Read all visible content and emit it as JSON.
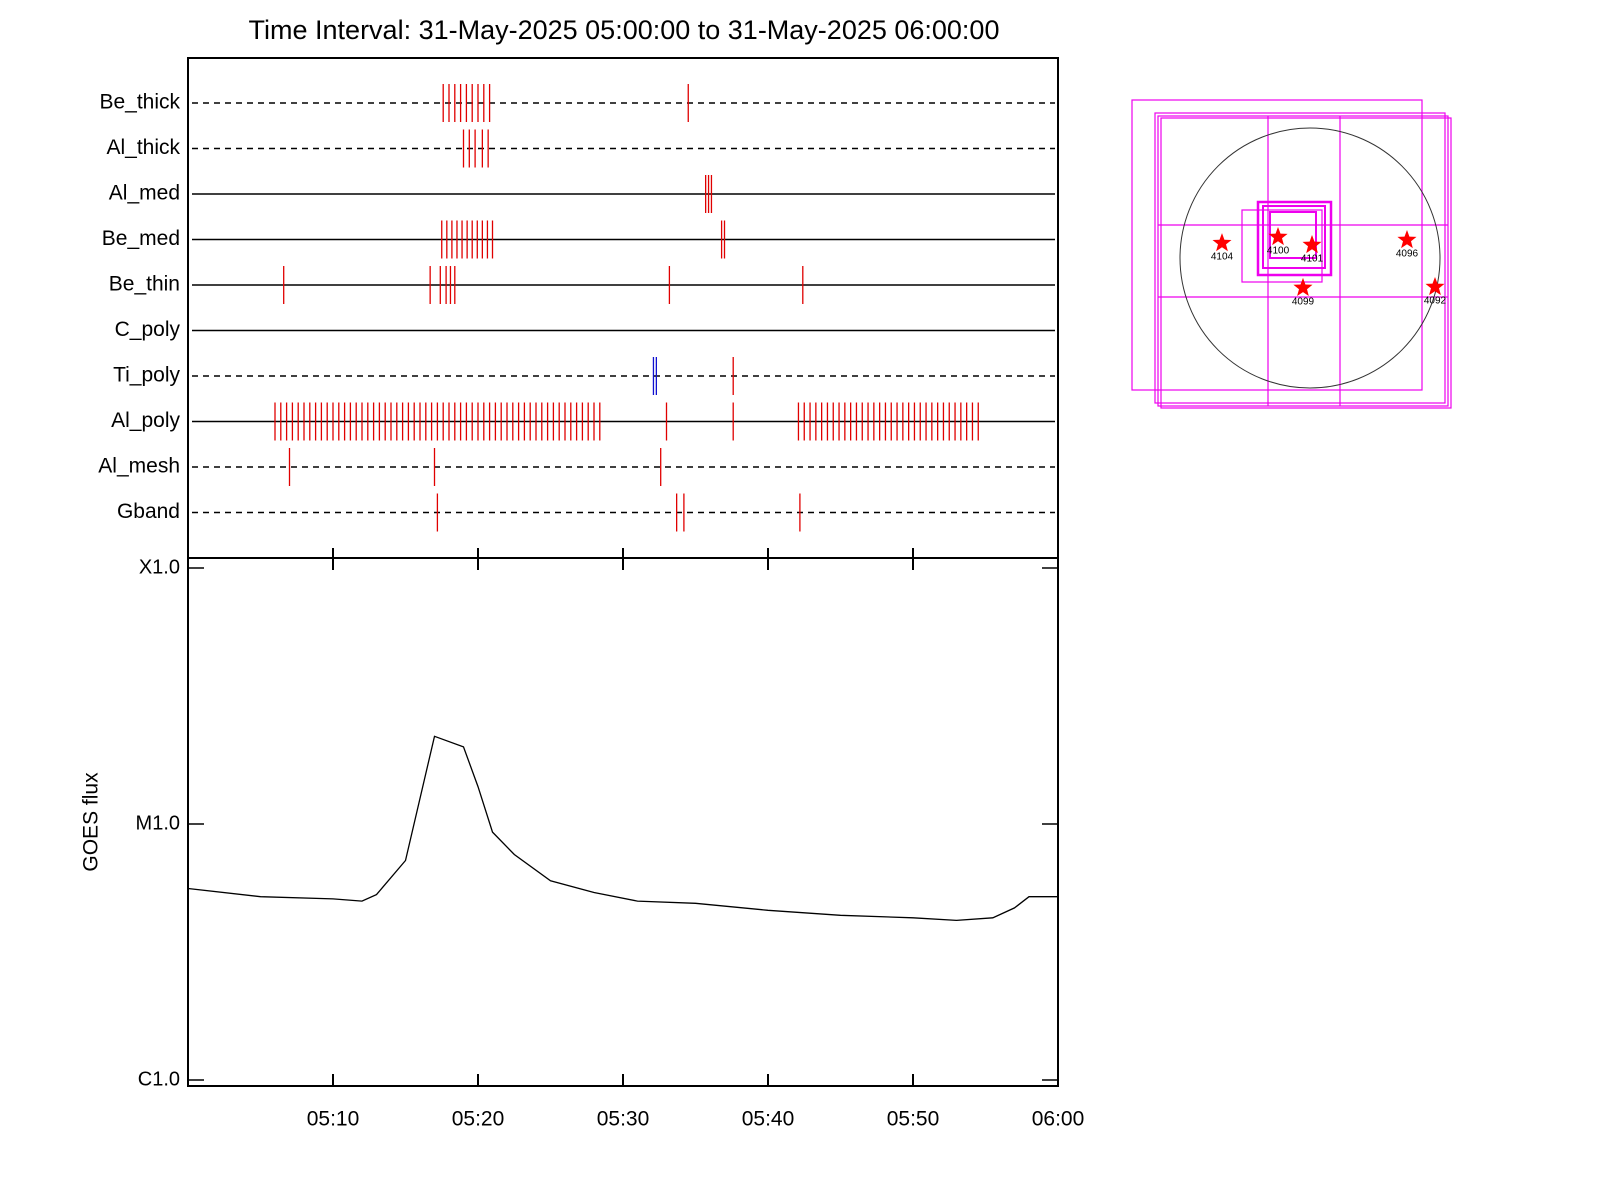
{
  "chart_data": [
    {
      "type": "events",
      "title": "Time Interval: 31-May-2025 05:00:00 to 31-May-2025 06:00:00",
      "xlim": [
        0,
        60
      ],
      "rows": [
        {
          "name": "Be_thick",
          "dashed": true,
          "events": [
            {
              "color": "#e00000",
              "times": [
                17.6,
                18.0,
                18.4,
                18.8,
                19.2,
                19.6,
                20.0,
                20.4,
                20.8,
                34.5
              ]
            }
          ]
        },
        {
          "name": "Al_thick",
          "dashed": true,
          "events": [
            {
              "color": "#e00000",
              "times": [
                19.0,
                19.4,
                19.8,
                20.3,
                20.7
              ]
            }
          ]
        },
        {
          "name": "Al_med",
          "dashed": false,
          "events": [
            {
              "color": "#e00000",
              "times": [
                35.7,
                35.9,
                36.1
              ]
            }
          ]
        },
        {
          "name": "Be_med",
          "dashed": false,
          "events": [
            {
              "color": "#e00000",
              "times": [
                17.5,
                17.85,
                18.2,
                18.55,
                18.9,
                19.25,
                19.6,
                19.95,
                20.3,
                20.65,
                21.0,
                36.8,
                37.0
              ]
            }
          ]
        },
        {
          "name": "Be_thin",
          "dashed": false,
          "events": [
            {
              "color": "#e00000",
              "times": [
                6.6,
                16.7,
                17.4,
                17.8,
                18.1,
                18.4,
                33.2,
                42.4
              ]
            }
          ]
        },
        {
          "name": "C_poly",
          "dashed": false,
          "events": []
        },
        {
          "name": "Ti_poly",
          "dashed": true,
          "events": [
            {
              "color": "#1010d0",
              "times": [
                32.1,
                32.3
              ]
            },
            {
              "color": "#e00000",
              "times": [
                37.6
              ]
            }
          ]
        },
        {
          "name": "Al_poly",
          "dashed": false,
          "events": [
            {
              "color": "#e00000",
              "times": [
                6.0,
                6.4,
                6.8,
                7.2,
                7.6,
                8.0,
                8.4,
                8.8,
                9.2,
                9.6,
                10.0,
                10.4,
                10.8,
                11.2,
                11.6,
                12.0,
                12.4,
                12.8,
                13.2,
                13.6,
                14.0,
                14.4,
                14.8,
                15.2,
                15.6,
                16.0,
                16.4,
                16.8,
                17.2,
                17.6,
                18.0,
                18.4,
                18.8,
                19.2,
                19.6,
                20.0,
                20.4,
                20.8,
                21.2,
                21.6,
                22.0,
                22.4,
                22.8,
                23.2,
                23.6,
                24.0,
                24.4,
                24.8,
                25.2,
                25.6,
                26.0,
                26.4,
                26.8,
                27.2,
                27.6,
                28.0,
                28.4,
                33.0,
                37.6,
                42.1,
                42.5,
                42.9,
                43.3,
                43.7,
                44.1,
                44.5,
                44.9,
                45.3,
                45.7,
                46.1,
                46.5,
                46.9,
                47.3,
                47.7,
                48.1,
                48.5,
                48.9,
                49.3,
                49.7,
                50.1,
                50.5,
                50.9,
                51.3,
                51.7,
                52.1,
                52.5,
                52.9,
                53.3,
                53.7,
                54.1,
                54.5
              ]
            }
          ]
        },
        {
          "name": "Al_mesh",
          "dashed": true,
          "events": [
            {
              "color": "#e00000",
              "times": [
                7.0,
                17.0,
                32.6
              ]
            }
          ]
        },
        {
          "name": "Gband",
          "dashed": true,
          "events": [
            {
              "color": "#e00000",
              "times": [
                17.2,
                33.7,
                34.2,
                42.2
              ]
            }
          ]
        }
      ]
    },
    {
      "type": "line",
      "ylabel": "GOES flux",
      "log_scale": true,
      "color": "#000000",
      "x": [
        0,
        5,
        10,
        12,
        13,
        15,
        17,
        19,
        20,
        21,
        22.5,
        25,
        28,
        31,
        35,
        40,
        45,
        50,
        53,
        55.5,
        57,
        58,
        60
      ],
      "values": [
        5.6e-06,
        5.2e-06,
        5.1e-06,
        5e-06,
        5.3e-06,
        7.2e-06,
        2.2e-05,
        2e-05,
        1.4e-05,
        9.3e-06,
        7.6e-06,
        6e-06,
        5.4e-06,
        5e-06,
        4.9e-06,
        4.6e-06,
        4.4e-06,
        4.3e-06,
        4.2e-06,
        4.3e-06,
        4.7e-06,
        5.2e-06,
        5.2e-06
      ],
      "xlim": [
        0,
        60
      ],
      "xticks": [
        {
          "value": 10,
          "label": "05:10"
        },
        {
          "value": 20,
          "label": "05:20"
        },
        {
          "value": 30,
          "label": "05:30"
        },
        {
          "value": 40,
          "label": "05:40"
        },
        {
          "value": 50,
          "label": "05:50"
        },
        {
          "value": 60,
          "label": "06:00"
        }
      ],
      "ylim": [
        1e-06,
        0.0001
      ],
      "yticks": [
        {
          "value": 1e-06,
          "label": "C1.0"
        },
        {
          "value": 1e-05,
          "label": "M1.0"
        },
        {
          "value": 0.0001,
          "label": "X1.0"
        }
      ]
    },
    {
      "type": "map",
      "color": "#ff0000",
      "labels": [
        "4104",
        "4100",
        "4101",
        "4096",
        "4099",
        "4092"
      ],
      "x": [
        -650,
        -236,
        15,
        716,
        -52,
        923
      ],
      "y": [
        110,
        155,
        96,
        133,
        -221,
        -214
      ]
    }
  ]
}
